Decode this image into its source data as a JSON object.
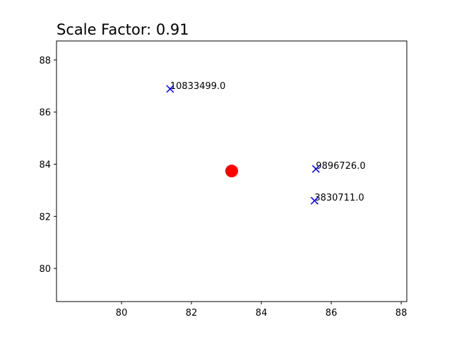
{
  "chart_data": {
    "type": "scatter",
    "title": "Scale Factor: 0.91",
    "points": {
      "x": [
        81.39,
        85.56,
        85.52
      ],
      "y": [
        86.89,
        83.82,
        82.6
      ],
      "labels": [
        "10833499.0",
        "9896726.0",
        "3830711.0"
      ],
      "color": "#0000ff",
      "marker": "x"
    },
    "center": {
      "x": 83.15,
      "y": 83.74,
      "color": "#ff0000"
    },
    "xlim": [
      78.14,
      88.16
    ],
    "ylim": [
      78.73,
      88.73
    ],
    "xticks": [
      80,
      82,
      84,
      86,
      88
    ],
    "yticks": [
      80,
      82,
      84,
      86,
      88
    ]
  }
}
